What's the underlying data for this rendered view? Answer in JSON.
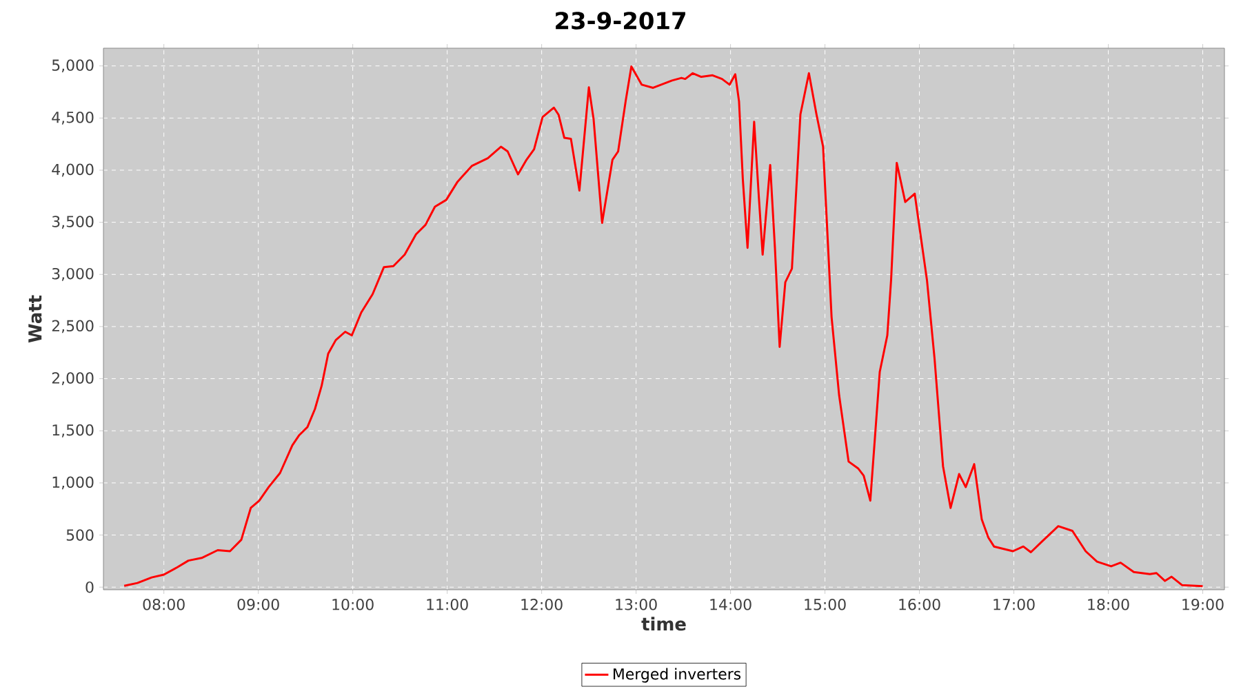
{
  "chart_data": {
    "type": "line",
    "title": "23-9-2017",
    "xlabel": "time",
    "ylabel": "Watt",
    "x": [
      7.58,
      7.72,
      7.87,
      8.0,
      8.14,
      8.26,
      8.4,
      8.57,
      8.7,
      8.82,
      8.92,
      9.01,
      9.11,
      9.23,
      9.36,
      9.43,
      9.52,
      9.6,
      9.67,
      9.74,
      9.82,
      9.92,
      9.99,
      10.09,
      10.21,
      10.33,
      10.43,
      10.55,
      10.67,
      10.77,
      10.87,
      10.99,
      11.11,
      11.26,
      11.43,
      11.57,
      11.64,
      11.75,
      11.84,
      11.92,
      12.01,
      12.13,
      12.18,
      12.24,
      12.31,
      12.4,
      12.5,
      12.55,
      12.64,
      12.75,
      12.81,
      12.89,
      12.95,
      13.06,
      13.18,
      13.38,
      13.48,
      13.52,
      13.6,
      13.69,
      13.81,
      13.91,
      13.99,
      14.05,
      14.09,
      14.13,
      14.18,
      14.25,
      14.3,
      14.34,
      14.42,
      14.47,
      14.52,
      14.58,
      14.65,
      14.74,
      14.83,
      14.91,
      14.98,
      15.07,
      15.15,
      15.25,
      15.35,
      15.41,
      15.48,
      15.58,
      15.66,
      15.7,
      15.76,
      15.85,
      15.95,
      16.08,
      16.16,
      16.25,
      16.33,
      16.42,
      16.49,
      16.58,
      16.66,
      16.73,
      16.79,
      16.99,
      17.1,
      17.18,
      17.3,
      17.47,
      17.62,
      17.76,
      17.88,
      18.03,
      18.13,
      18.27,
      18.44,
      18.51,
      18.6,
      18.67,
      18.78,
      19.0
    ],
    "series": [
      {
        "name": "Merged inverters",
        "color": "#ff0000",
        "values": [
          13,
          40,
          93,
          120,
          190,
          255,
          280,
          355,
          345,
          455,
          760,
          830,
          960,
          1095,
          1360,
          1455,
          1535,
          1710,
          1930,
          2240,
          2370,
          2450,
          2415,
          2635,
          2810,
          3070,
          3080,
          3190,
          3385,
          3475,
          3650,
          3715,
          3890,
          4040,
          4115,
          4225,
          4180,
          3960,
          4100,
          4200,
          4510,
          4600,
          4530,
          4310,
          4300,
          3805,
          4795,
          4490,
          3495,
          4100,
          4180,
          4665,
          4995,
          4820,
          4790,
          4860,
          4885,
          4875,
          4930,
          4895,
          4910,
          4875,
          4820,
          4920,
          4660,
          3915,
          3255,
          4465,
          3740,
          3190,
          4050,
          3255,
          2305,
          2925,
          3055,
          4535,
          4930,
          4535,
          4225,
          2590,
          1840,
          1205,
          1140,
          1070,
          830,
          2065,
          2415,
          2945,
          4070,
          3695,
          3775,
          2945,
          2195,
          1160,
          760,
          1085,
          960,
          1180,
          650,
          475,
          390,
          345,
          390,
          335,
          440,
          585,
          540,
          345,
          245,
          200,
          235,
          145,
          125,
          135,
          60,
          100,
          20,
          10
        ]
      }
    ],
    "xlim": [
      7.36,
      19.23
    ],
    "ylim": [
      -25,
      5170
    ],
    "xticks": [
      {
        "value": 8,
        "label": "08:00"
      },
      {
        "value": 9,
        "label": "09:00"
      },
      {
        "value": 10,
        "label": "10:00"
      },
      {
        "value": 11,
        "label": "11:00"
      },
      {
        "value": 12,
        "label": "12:00"
      },
      {
        "value": 13,
        "label": "13:00"
      },
      {
        "value": 14,
        "label": "14:00"
      },
      {
        "value": 15,
        "label": "15:00"
      },
      {
        "value": 16,
        "label": "16:00"
      },
      {
        "value": 17,
        "label": "17:00"
      },
      {
        "value": 18,
        "label": "18:00"
      },
      {
        "value": 19,
        "label": "19:00"
      }
    ],
    "yticks": [
      0,
      500,
      {
        "value": 1000,
        "label": "1,000"
      },
      {
        "value": 1500,
        "label": "1,500"
      },
      {
        "value": 2000,
        "label": "2,000"
      },
      {
        "value": 2500,
        "label": "2,500"
      },
      {
        "value": 3000,
        "label": "3,000"
      },
      {
        "value": 3500,
        "label": "3,500"
      },
      {
        "value": 4000,
        "label": "4,000"
      },
      {
        "value": 4500,
        "label": "4,500"
      },
      {
        "value": 5000,
        "label": "5,000"
      }
    ],
    "grid": true,
    "legend": "bottom"
  }
}
